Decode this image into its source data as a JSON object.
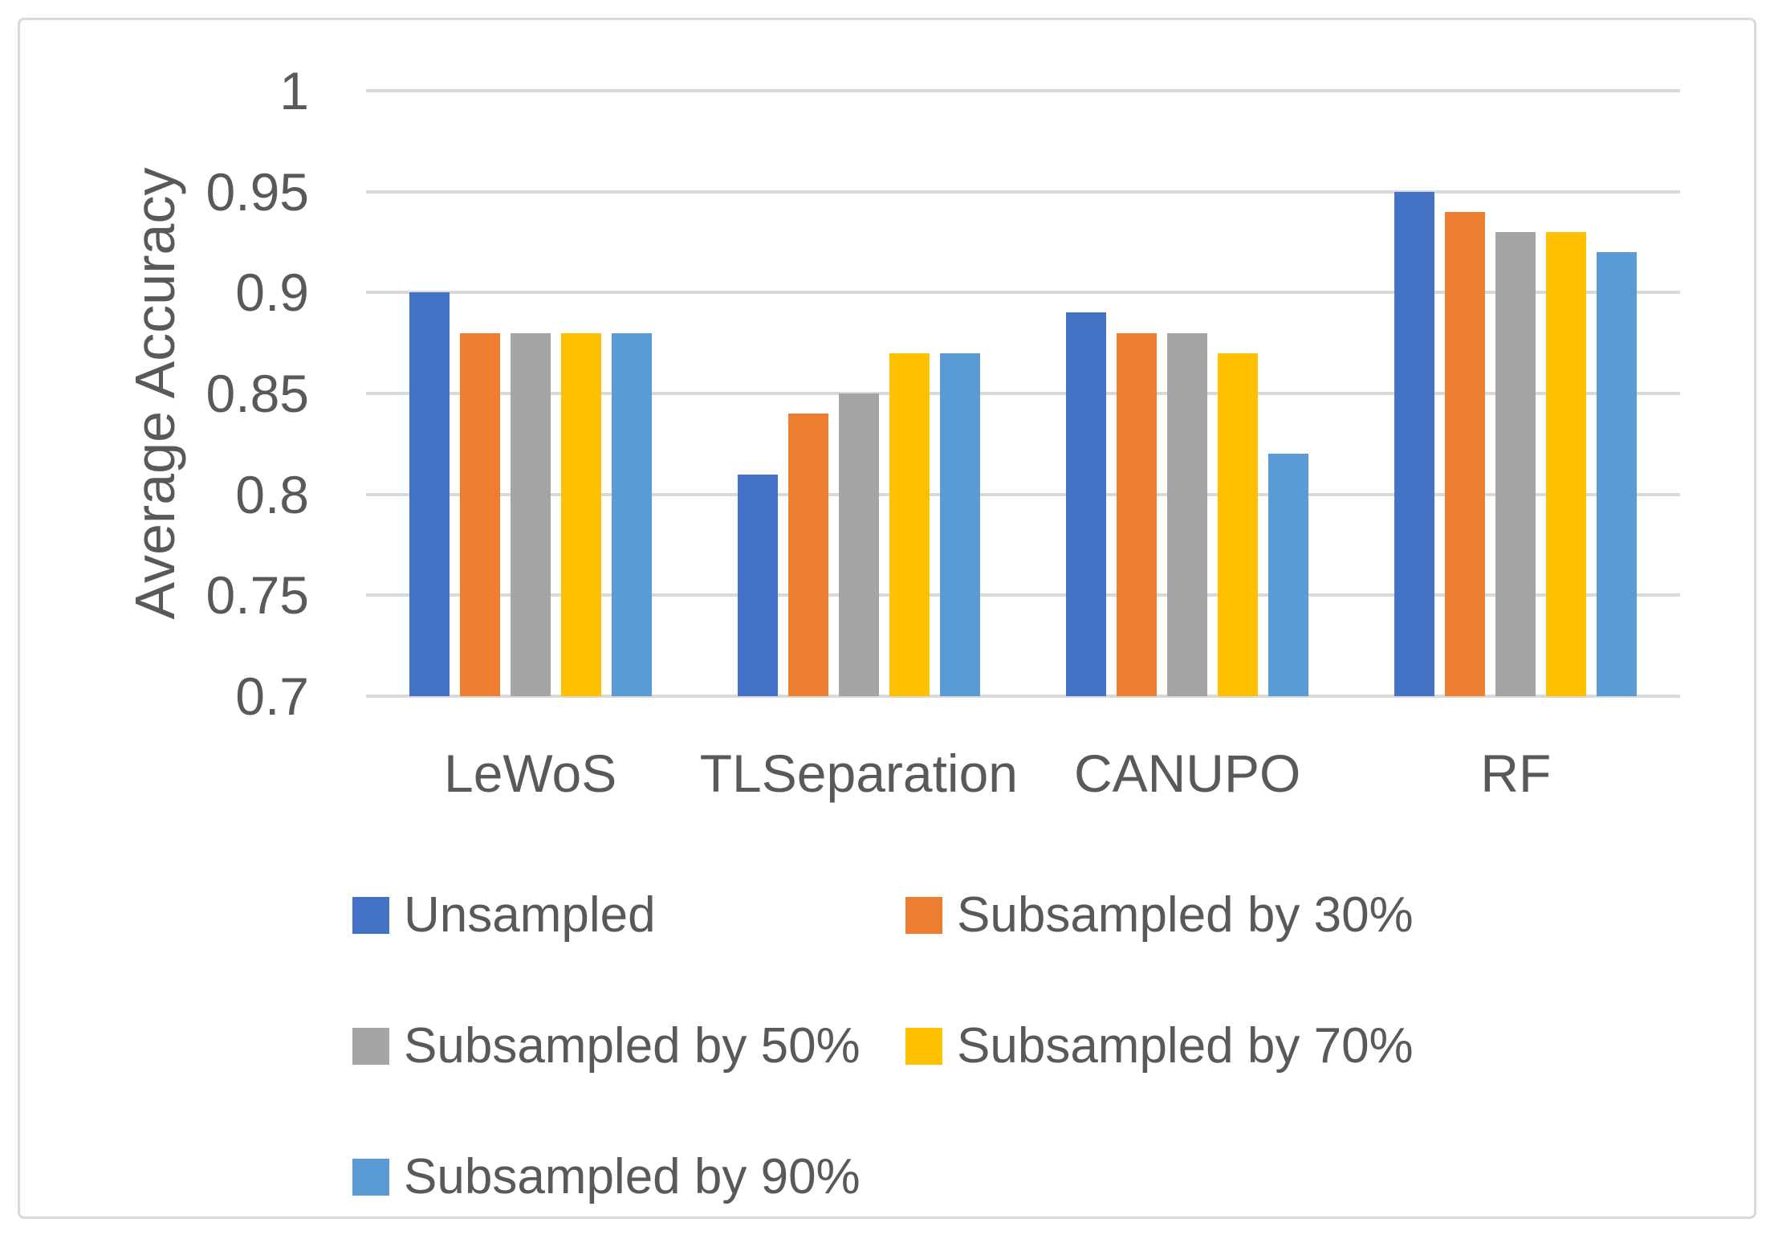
{
  "colors": {
    "text": "#595959",
    "gridline": "#D9D9D9",
    "frame_border": "#D9D9D9",
    "background": "#FFFFFF"
  },
  "chart_data": {
    "type": "bar",
    "title": "",
    "xlabel": "",
    "ylabel": "Average Accuracy",
    "categories": [
      "LeWoS",
      "TLSeparation",
      "CANUPO",
      "RF"
    ],
    "series": [
      {
        "name": "Unsampled",
        "color": "#4472C4",
        "values": [
          0.9,
          0.81,
          0.89,
          0.95
        ]
      },
      {
        "name": "Subsampled by 30%",
        "color": "#ED7D31",
        "values": [
          0.88,
          0.84,
          0.88,
          0.94
        ]
      },
      {
        "name": "Subsampled by 50%",
        "color": "#A5A5A5",
        "values": [
          0.88,
          0.85,
          0.88,
          0.93
        ]
      },
      {
        "name": "Subsampled by 70%",
        "color": "#FFC000",
        "values": [
          0.88,
          0.87,
          0.87,
          0.93
        ]
      },
      {
        "name": "Subsampled by 90%",
        "color": "#5B9BD5",
        "values": [
          0.88,
          0.87,
          0.82,
          0.92
        ]
      }
    ],
    "ylim": [
      0.7,
      1.0
    ],
    "yticks": [
      {
        "value": 1.0,
        "label": "1"
      },
      {
        "value": 0.95,
        "label": "0.95"
      },
      {
        "value": 0.9,
        "label": "0.9"
      },
      {
        "value": 0.85,
        "label": "0.85"
      },
      {
        "value": 0.8,
        "label": "0.8"
      },
      {
        "value": 0.75,
        "label": "0.75"
      },
      {
        "value": 0.7,
        "label": "0.7"
      }
    ],
    "grid": true,
    "legend_position": "bottom"
  }
}
